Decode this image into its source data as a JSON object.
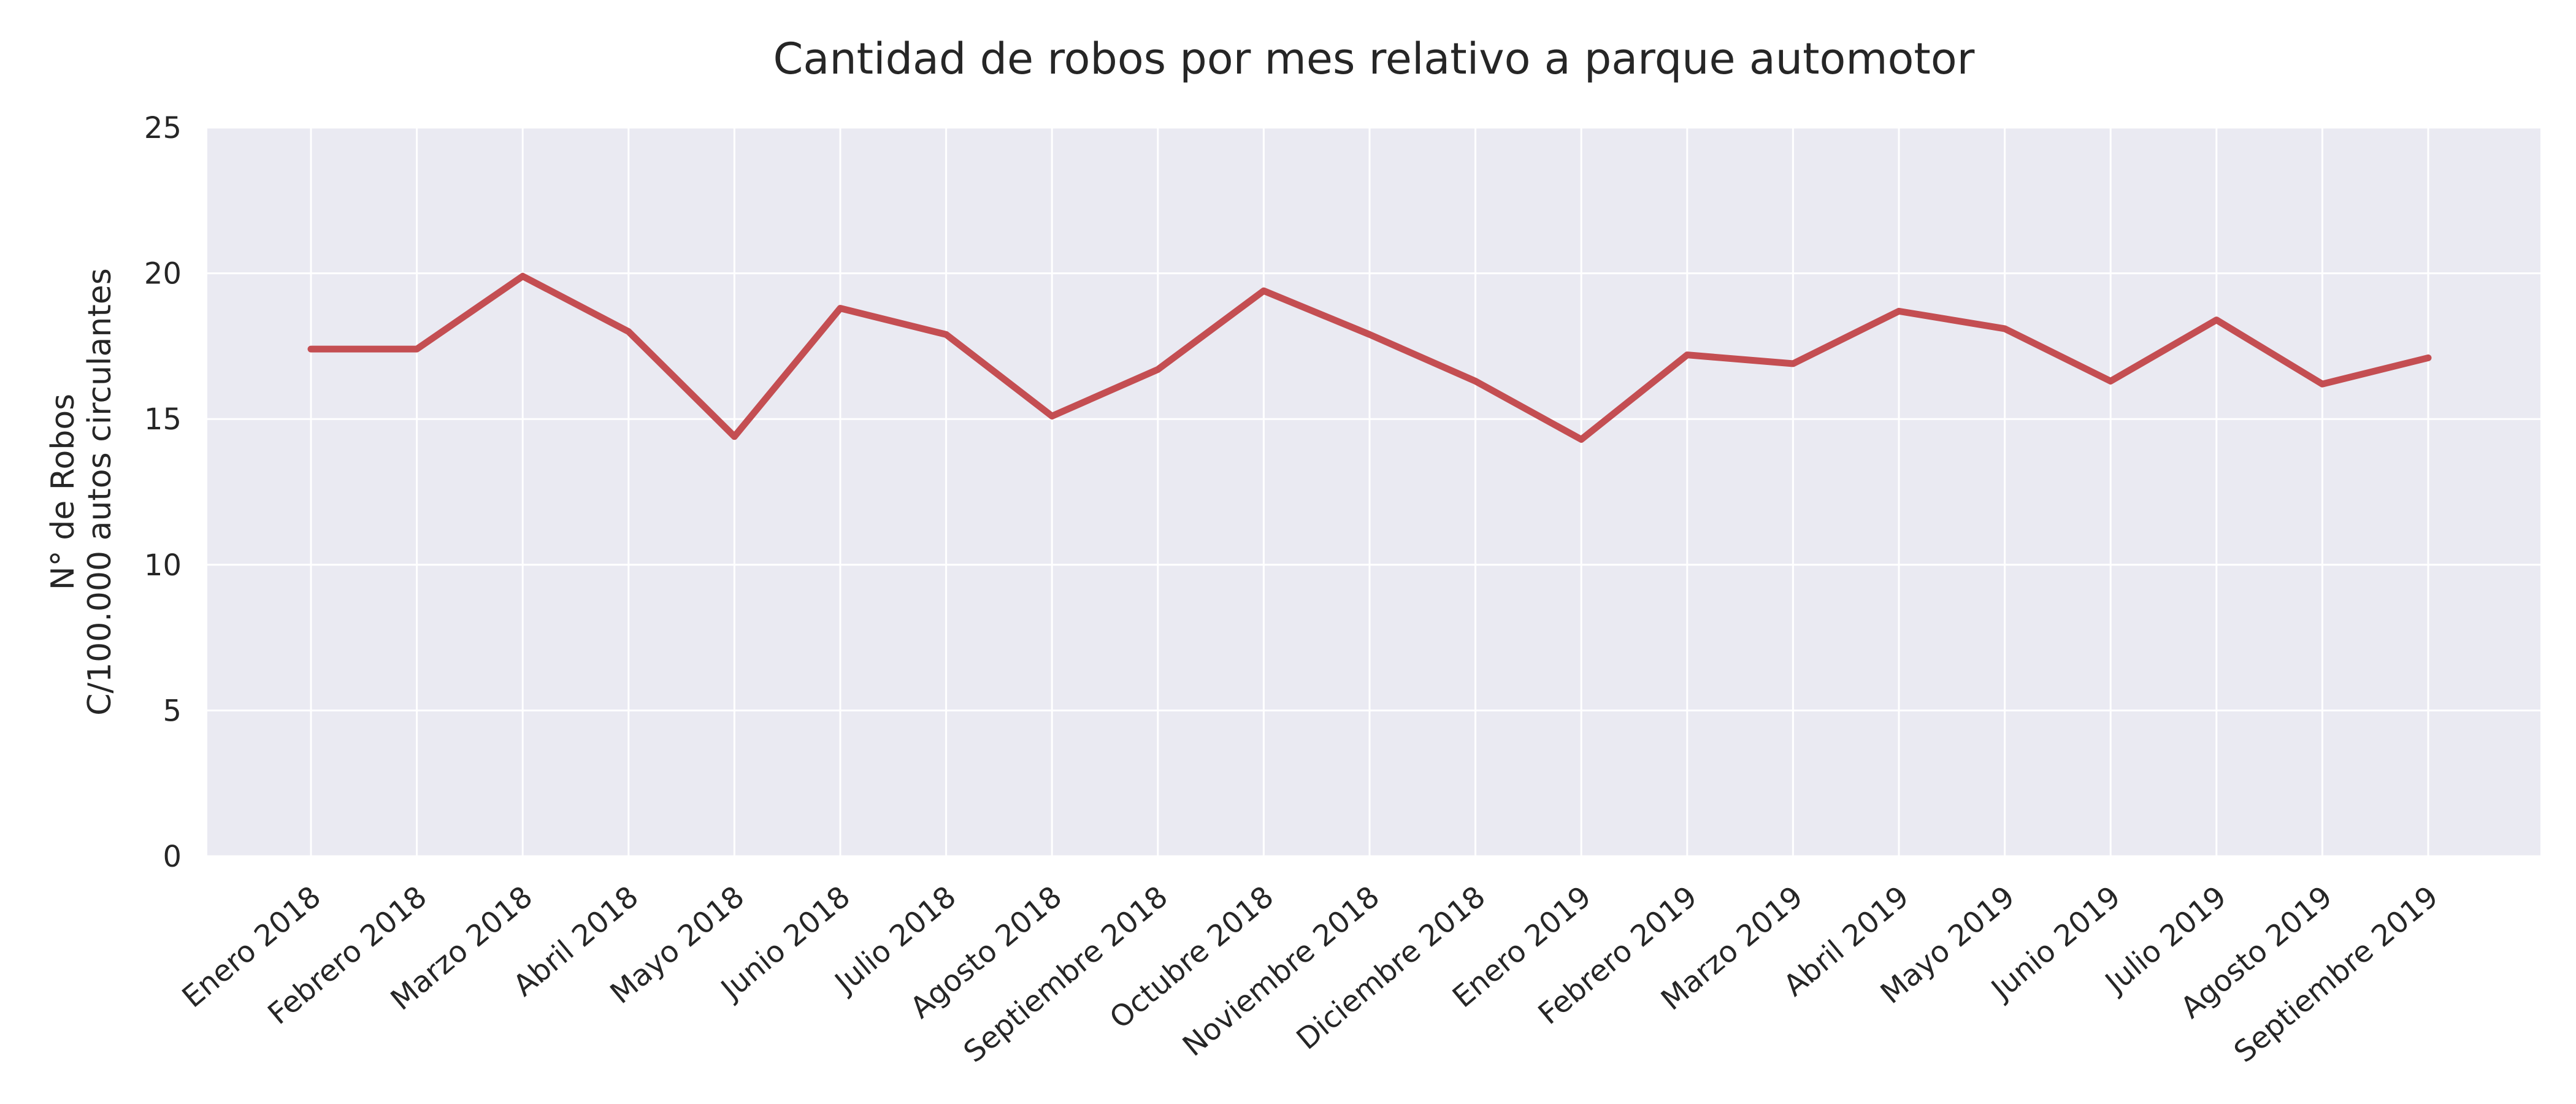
{
  "chart_data": {
    "type": "line",
    "title": "Cantidad de robos por mes relativo a parque automotor",
    "ylabel_lines": [
      "N° de Robos",
      "C/100.000 autos circulantes"
    ],
    "xlabel": "",
    "categories": [
      "Enero 2018",
      "Febrero 2018",
      "Marzo 2018",
      "Abril 2018",
      "Mayo 2018",
      "Junio 2018",
      "Julio 2018",
      "Agosto 2018",
      "Septiembre 2018",
      "Octubre 2018",
      "Noviembre 2018",
      "Diciembre 2018",
      "Enero 2019",
      "Febrero 2019",
      "Marzo 2019",
      "Abril 2019",
      "Mayo 2019",
      "Junio 2019",
      "Julio 2019",
      "Agosto 2019",
      "Septiembre 2019"
    ],
    "series": [
      {
        "values": [
          17.4,
          17.4,
          19.9,
          18.0,
          14.4,
          18.8,
          17.9,
          15.1,
          16.7,
          19.4,
          17.9,
          16.3,
          14.3,
          17.2,
          16.9,
          18.7,
          18.1,
          16.3,
          18.4,
          16.2,
          17.1
        ],
        "color": "#c44e52"
      }
    ],
    "yticks": [
      0,
      5,
      10,
      15,
      20,
      25
    ],
    "ylim": [
      0,
      25
    ],
    "grid": true,
    "background": "#eaeaf2",
    "grid_color": "#ffffff"
  }
}
